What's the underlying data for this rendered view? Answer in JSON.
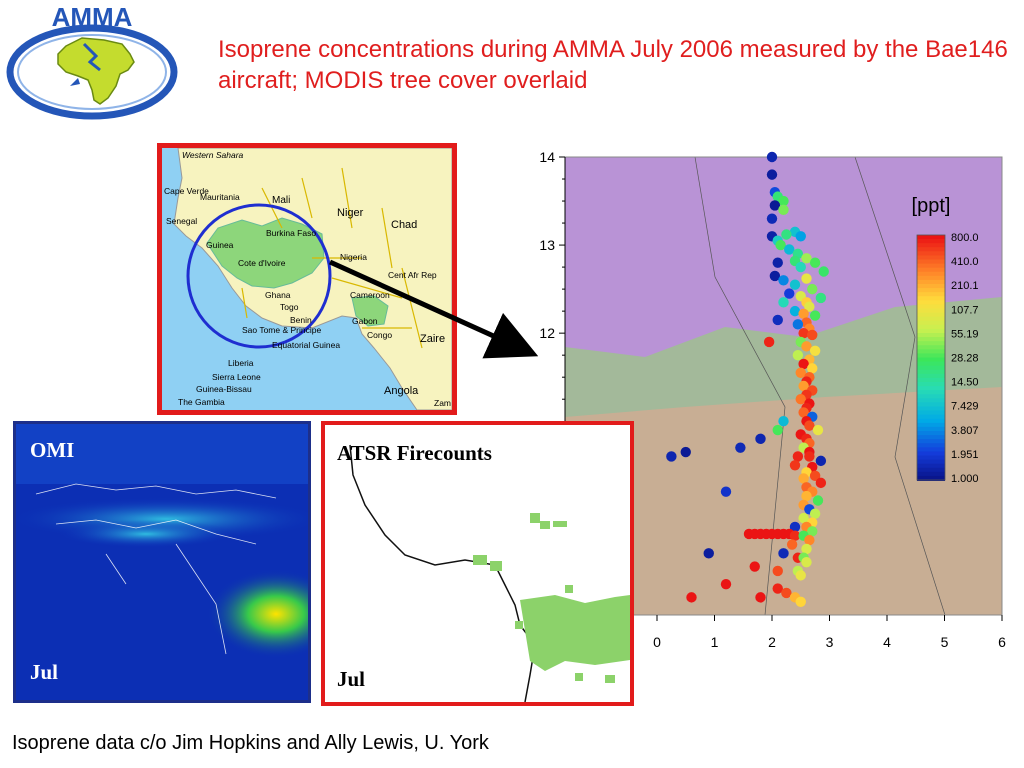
{
  "header": {
    "title": "Isoprene concentrations during AMMA July 2006 measured by the Bae146 aircraft; MODIS tree cover overlaid",
    "logo_text": "AMMA"
  },
  "map": {
    "labels": [
      "Western Sahara",
      "Mali",
      "Niger",
      "Chad",
      "Cape Verde",
      "Mauritania",
      "Senegal",
      "Guinea",
      "Burkina Faso",
      "Cote d'Ivoire",
      "Nigeria",
      "Cent Afr Rep",
      "Ghana",
      "Togo",
      "Cameroon",
      "Benin",
      "Gabon",
      "Congo",
      "Zaire",
      "Sao Tome & Principe",
      "Equatorial Guinea",
      "Liberia",
      "Sierra Leone",
      "Guinea-Bissau",
      "The Gambia",
      "Angola",
      "Zam"
    ]
  },
  "omi": {
    "label": "OMI",
    "month": "Jul"
  },
  "atsr": {
    "label": "ATSR Firecounts",
    "month": "Jul"
  },
  "colorbar": {
    "unit": "[ppt]",
    "ticks": [
      "800.0",
      "410.0",
      "210.1",
      "107.7",
      "55.19",
      "28.28",
      "14.50",
      "7.429",
      "3.807",
      "1.951",
      "1.000"
    ]
  },
  "footer": {
    "credit": "Isoprene data c/o Jim Hopkins and Ally Lewis, U. York"
  },
  "chart_data": {
    "type": "scatter",
    "x_ticks": [
      "0",
      "1",
      "2",
      "3",
      "4",
      "5",
      "6"
    ],
    "y_ticks": [
      "14",
      "13",
      "12"
    ],
    "xlim": [
      -1.6,
      6
    ],
    "ylim": [
      8.8,
      14
    ],
    "colorscale": "log",
    "cmin": 1.0,
    "cmax": 800.0,
    "colorbar_label": "[ppt]",
    "series": [
      {
        "points": [
          [
            2.0,
            14.0,
            1.5
          ],
          [
            2.0,
            13.8,
            1.3
          ],
          [
            2.05,
            13.6,
            2.5
          ],
          [
            2.1,
            13.55,
            22
          ],
          [
            2.2,
            13.5,
            30
          ],
          [
            2.05,
            13.45,
            1.2
          ],
          [
            2.2,
            13.4,
            40
          ],
          [
            2.0,
            13.3,
            1.6
          ],
          [
            2.4,
            13.15,
            8
          ],
          [
            2.25,
            13.12,
            20
          ],
          [
            2.0,
            13.1,
            1.4
          ],
          [
            2.5,
            13.1,
            5
          ],
          [
            2.1,
            13.05,
            10
          ],
          [
            2.15,
            13.0,
            30
          ],
          [
            2.3,
            12.95,
            7
          ],
          [
            2.45,
            12.9,
            18
          ],
          [
            2.6,
            12.85,
            50
          ],
          [
            2.4,
            12.82,
            22
          ],
          [
            2.75,
            12.8,
            30
          ],
          [
            2.1,
            12.8,
            1.4
          ],
          [
            2.5,
            12.75,
            12
          ],
          [
            2.9,
            12.7,
            25
          ],
          [
            2.05,
            12.65,
            1.3
          ],
          [
            2.6,
            12.62,
            100
          ],
          [
            2.2,
            12.6,
            4
          ],
          [
            2.4,
            12.55,
            8
          ],
          [
            2.7,
            12.5,
            40
          ],
          [
            2.3,
            12.45,
            2.2
          ],
          [
            2.5,
            12.42,
            80
          ],
          [
            2.85,
            12.4,
            20
          ],
          [
            2.6,
            12.35,
            160
          ],
          [
            2.2,
            12.35,
            12
          ],
          [
            2.65,
            12.3,
            90
          ],
          [
            2.4,
            12.25,
            6
          ],
          [
            2.55,
            12.22,
            250
          ],
          [
            2.75,
            12.2,
            30
          ],
          [
            2.1,
            12.15,
            1.7
          ],
          [
            2.6,
            12.12,
            400
          ],
          [
            2.45,
            12.1,
            3.5
          ],
          [
            2.65,
            12.05,
            300
          ],
          [
            2.55,
            12.0,
            600
          ],
          [
            2.7,
            11.98,
            500
          ],
          [
            2.5,
            11.9,
            40
          ],
          [
            1.95,
            11.9,
            700
          ],
          [
            2.6,
            11.85,
            250
          ],
          [
            2.75,
            11.8,
            120
          ],
          [
            2.45,
            11.75,
            60
          ],
          [
            2.65,
            11.7,
            200
          ],
          [
            2.55,
            11.65,
            800
          ],
          [
            2.7,
            11.6,
            150
          ],
          [
            2.5,
            11.55,
            300
          ],
          [
            2.65,
            11.5,
            400
          ],
          [
            2.6,
            11.45,
            700
          ],
          [
            2.55,
            11.4,
            250
          ],
          [
            2.7,
            11.35,
            500
          ],
          [
            2.6,
            11.3,
            600
          ],
          [
            2.5,
            11.25,
            350
          ],
          [
            2.65,
            11.2,
            800
          ],
          [
            2.6,
            11.15,
            700
          ],
          [
            2.55,
            11.1,
            400
          ],
          [
            2.7,
            11.05,
            3
          ],
          [
            2.2,
            11.0,
            7
          ],
          [
            2.6,
            11.0,
            900
          ],
          [
            2.65,
            10.95,
            500
          ],
          [
            2.8,
            10.9,
            100
          ],
          [
            2.1,
            10.9,
            30
          ],
          [
            2.5,
            10.85,
            800
          ],
          [
            1.8,
            10.8,
            1.5
          ],
          [
            2.6,
            10.8,
            700
          ],
          [
            2.65,
            10.75,
            400
          ],
          [
            1.45,
            10.7,
            1.6
          ],
          [
            2.55,
            10.7,
            60
          ],
          [
            2.65,
            10.65,
            900
          ],
          [
            0.5,
            10.65,
            1.2
          ],
          [
            2.45,
            10.6,
            700
          ],
          [
            2.65,
            10.6,
            650
          ],
          [
            0.25,
            10.6,
            1.5
          ],
          [
            2.85,
            10.55,
            1.5
          ],
          [
            2.4,
            10.5,
            600
          ],
          [
            2.7,
            10.48,
            800
          ],
          [
            2.6,
            10.42,
            150
          ],
          [
            2.75,
            10.38,
            500
          ],
          [
            2.55,
            10.35,
            220
          ],
          [
            2.85,
            10.3,
            700
          ],
          [
            2.6,
            10.25,
            400
          ],
          [
            2.7,
            10.2,
            300
          ],
          [
            1.2,
            10.2,
            1.9
          ],
          [
            2.6,
            10.15,
            200
          ],
          [
            2.8,
            10.1,
            30
          ],
          [
            2.55,
            10.05,
            250
          ],
          [
            2.65,
            10.0,
            2.5
          ],
          [
            2.75,
            9.95,
            60
          ],
          [
            2.55,
            9.9,
            70
          ],
          [
            2.7,
            9.85,
            150
          ],
          [
            2.4,
            9.8,
            1.8
          ],
          [
            2.6,
            9.8,
            300
          ],
          [
            2.7,
            9.75,
            40
          ],
          [
            1.6,
            9.72,
            800
          ],
          [
            1.7,
            9.72,
            800
          ],
          [
            1.8,
            9.72,
            800
          ],
          [
            1.9,
            9.72,
            800
          ],
          [
            2.0,
            9.72,
            800
          ],
          [
            2.1,
            9.72,
            800
          ],
          [
            2.2,
            9.72,
            800
          ],
          [
            2.3,
            9.72,
            800
          ],
          [
            2.4,
            9.7,
            650
          ],
          [
            2.55,
            9.7,
            30
          ],
          [
            2.65,
            9.65,
            300
          ],
          [
            2.35,
            9.6,
            400
          ],
          [
            2.6,
            9.55,
            80
          ],
          [
            0.9,
            9.5,
            1.3
          ],
          [
            2.2,
            9.5,
            1.6
          ],
          [
            2.45,
            9.45,
            700
          ],
          [
            2.55,
            9.45,
            40
          ],
          [
            2.6,
            9.4,
            80
          ],
          [
            1.7,
            9.35,
            800
          ],
          [
            2.1,
            9.3,
            500
          ],
          [
            2.45,
            9.3,
            60
          ],
          [
            2.5,
            9.25,
            100
          ],
          [
            1.2,
            9.15,
            800
          ],
          [
            2.1,
            9.1,
            700
          ],
          [
            2.25,
            9.05,
            500
          ],
          [
            2.4,
            9.0,
            200
          ],
          [
            0.6,
            9.0,
            800
          ],
          [
            1.8,
            9.0,
            800
          ],
          [
            2.5,
            8.95,
            150
          ]
        ]
      }
    ]
  }
}
